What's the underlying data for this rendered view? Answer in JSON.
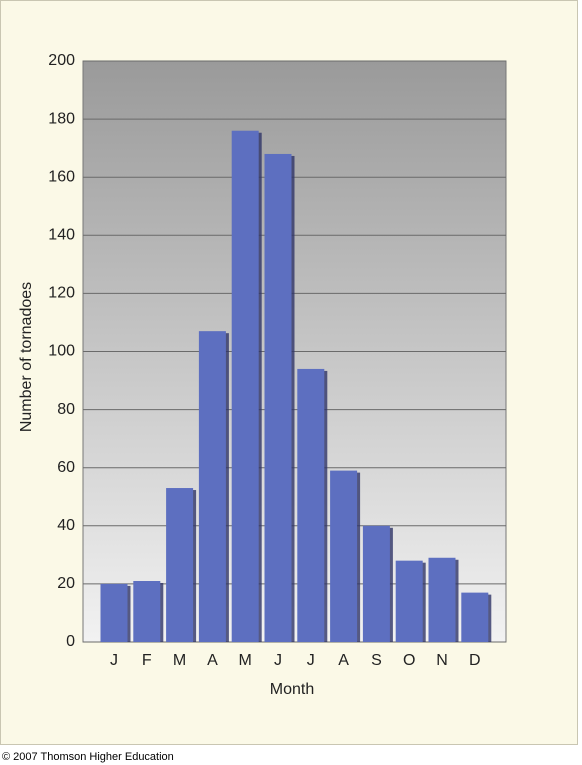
{
  "chart_data": {
    "type": "bar",
    "categories": [
      "J",
      "F",
      "M",
      "A",
      "M",
      "J",
      "J",
      "A",
      "S",
      "O",
      "N",
      "D"
    ],
    "values": [
      20,
      21,
      53,
      107,
      176,
      168,
      94,
      59,
      40,
      28,
      29,
      17
    ],
    "color": "#5d6fc0",
    "x_label": "Month",
    "y_label": "Number of tornadoes",
    "ylim": [
      0,
      200
    ],
    "yticks": [
      0,
      20,
      40,
      60,
      80,
      100,
      120,
      140,
      160,
      180,
      200
    ],
    "grid": true
  },
  "credit": "© 2007 Thomson Higher Education"
}
